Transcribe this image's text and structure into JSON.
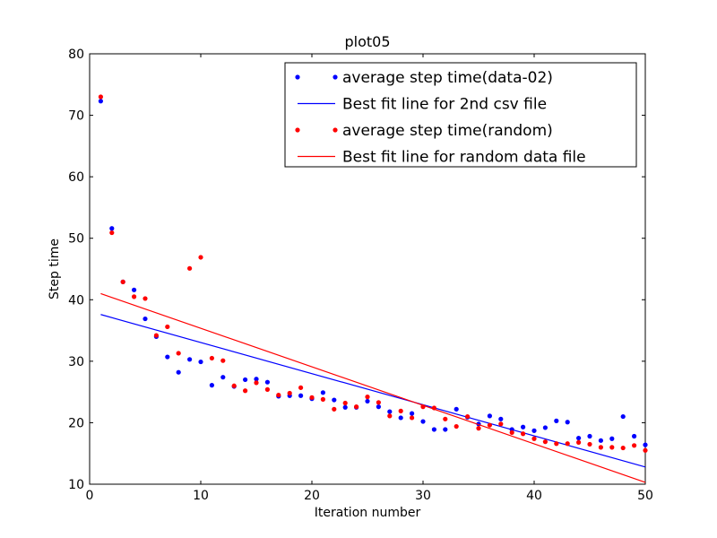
{
  "chart_data": {
    "type": "scatter",
    "title": "plot05",
    "xlabel": "Iteration number",
    "ylabel": "Step time",
    "xlim": [
      0,
      50
    ],
    "ylim": [
      10,
      80
    ],
    "xticks": [
      0,
      10,
      20,
      30,
      40,
      50
    ],
    "yticks": [
      10,
      20,
      30,
      40,
      50,
      60,
      70,
      80
    ],
    "grid": false,
    "legend_position": "top-right",
    "series": [
      {
        "name": "average step time(data-02)",
        "kind": "points",
        "color": "#0000ff",
        "x": [
          1,
          2,
          3,
          4,
          5,
          6,
          7,
          8,
          9,
          10,
          11,
          12,
          13,
          14,
          15,
          16,
          17,
          18,
          19,
          20,
          21,
          22,
          23,
          24,
          25,
          26,
          27,
          28,
          29,
          30,
          31,
          32,
          33,
          34,
          35,
          36,
          37,
          38,
          39,
          40,
          41,
          42,
          43,
          44,
          45,
          46,
          47,
          48,
          49,
          50
        ],
        "y": [
          72.3,
          51.6,
          42.9,
          41.6,
          36.9,
          34.0,
          30.7,
          28.2,
          30.3,
          29.9,
          26.1,
          27.4,
          25.9,
          27.0,
          27.1,
          26.6,
          24.3,
          24.4,
          24.4,
          23.9,
          24.9,
          23.7,
          22.5,
          22.5,
          23.5,
          22.6,
          21.8,
          20.8,
          21.5,
          20.2,
          18.9,
          18.9,
          22.2,
          20.9,
          19.8,
          21.1,
          20.6,
          18.9,
          19.3,
          18.7,
          19.2,
          20.3,
          20.1,
          17.5,
          17.8,
          17.1,
          17.4,
          21.0,
          17.8,
          16.4
        ]
      },
      {
        "name": "Best fit line for 2nd csv file",
        "kind": "line",
        "color": "#0000ff",
        "x": [
          1,
          50
        ],
        "y": [
          37.6,
          12.8
        ]
      },
      {
        "name": "average step time(random)",
        "kind": "points",
        "color": "#ff0000",
        "x": [
          1,
          2,
          3,
          4,
          5,
          6,
          7,
          8,
          9,
          10,
          11,
          12,
          13,
          14,
          15,
          16,
          17,
          18,
          19,
          20,
          21,
          22,
          23,
          24,
          25,
          26,
          27,
          28,
          29,
          30,
          31,
          32,
          33,
          34,
          35,
          36,
          37,
          38,
          39,
          40,
          41,
          42,
          43,
          44,
          45,
          46,
          47,
          48,
          49,
          50
        ],
        "y": [
          73.0,
          50.9,
          42.9,
          40.5,
          40.2,
          34.2,
          35.6,
          31.3,
          45.1,
          46.9,
          30.5,
          30.1,
          26.0,
          25.2,
          26.5,
          25.4,
          24.5,
          24.8,
          25.7,
          24.1,
          23.8,
          22.2,
          23.2,
          22.6,
          24.2,
          23.3,
          21.1,
          21.9,
          20.8,
          22.6,
          22.4,
          20.6,
          19.4,
          21.0,
          19.1,
          19.6,
          19.8,
          18.4,
          18.2,
          17.4,
          16.9,
          16.6,
          16.6,
          16.8,
          16.5,
          16.0,
          16.0,
          15.9,
          16.3,
          15.5
        ]
      },
      {
        "name": "Best fit line for random data file",
        "kind": "line",
        "color": "#ff0000",
        "x": [
          1,
          50
        ],
        "y": [
          41.0,
          10.3
        ]
      }
    ]
  }
}
